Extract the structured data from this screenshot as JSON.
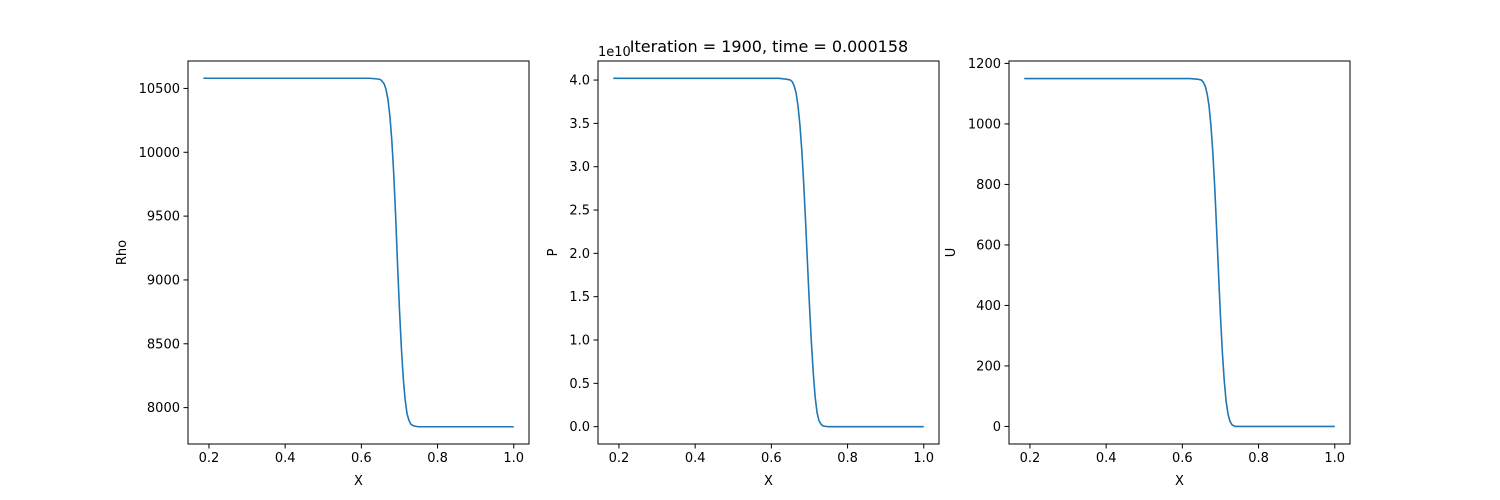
{
  "figure": {
    "title": "Iteration = 1900, time = 0.000158"
  },
  "colors": {
    "line": "#1f77b4",
    "axes": "#000000",
    "background": "#ffffff"
  },
  "chart_data": [
    {
      "type": "line",
      "xlabel": "X",
      "ylabel": "Rho",
      "xlim": [
        0.145,
        1.04
      ],
      "ylim": [
        7715,
        10715
      ],
      "x_ticks": [
        0.2,
        0.4,
        0.6,
        0.8,
        1.0
      ],
      "x_tick_labels": [
        "0.2",
        "0.4",
        "0.6",
        "0.8",
        "1.0"
      ],
      "y_ticks": [
        8000,
        8500,
        9000,
        9500,
        10000,
        10500
      ],
      "y_tick_labels": [
        "8000",
        "8500",
        "9000",
        "9500",
        "10000",
        "10500"
      ],
      "offset_text": "",
      "grid": false,
      "series": [
        {
          "x": [
            0.185,
            0.5,
            0.62,
            0.64,
            0.65,
            0.655,
            0.66,
            0.665,
            0.67,
            0.675,
            0.68,
            0.685,
            0.69,
            0.695,
            0.7,
            0.705,
            0.71,
            0.715,
            0.72,
            0.725,
            0.73,
            0.735,
            0.74,
            0.75,
            0.76,
            0.8,
            1.0
          ],
          "y": [
            10580,
            10580,
            10580,
            10575,
            10570,
            10555,
            10535,
            10490,
            10410,
            10280,
            10090,
            9830,
            9500,
            9120,
            8770,
            8470,
            8230,
            8060,
            7950,
            7900,
            7870,
            7860,
            7855,
            7850,
            7850,
            7850,
            7850
          ]
        }
      ]
    },
    {
      "type": "line",
      "xlabel": "X",
      "ylabel": "P",
      "xlim": [
        0.145,
        1.04
      ],
      "ylim": [
        -0.2,
        4.22
      ],
      "x_ticks": [
        0.2,
        0.4,
        0.6,
        0.8,
        1.0
      ],
      "x_tick_labels": [
        "0.2",
        "0.4",
        "0.6",
        "0.8",
        "1.0"
      ],
      "y_ticks": [
        0.0,
        0.5,
        1.0,
        1.5,
        2.0,
        2.5,
        3.0,
        3.5,
        4.0
      ],
      "y_tick_labels": [
        "0.0",
        "0.5",
        "1.0",
        "1.5",
        "2.0",
        "2.5",
        "3.0",
        "3.5",
        "4.0"
      ],
      "offset_text": "1e10",
      "grid": false,
      "series": [
        {
          "x": [
            0.185,
            0.5,
            0.62,
            0.64,
            0.65,
            0.655,
            0.66,
            0.665,
            0.67,
            0.675,
            0.68,
            0.685,
            0.69,
            0.695,
            0.7,
            0.705,
            0.71,
            0.715,
            0.72,
            0.725,
            0.73,
            0.735,
            0.74,
            0.75,
            0.76,
            0.8,
            1.0
          ],
          "y": [
            4.02,
            4.02,
            4.02,
            4.01,
            4.0,
            3.98,
            3.93,
            3.85,
            3.7,
            3.48,
            3.18,
            2.8,
            2.35,
            1.87,
            1.4,
            0.98,
            0.62,
            0.34,
            0.16,
            0.07,
            0.03,
            0.01,
            0.005,
            0.0,
            0.0,
            0.0,
            0.0
          ]
        }
      ]
    },
    {
      "type": "line",
      "xlabel": "X",
      "ylabel": "U",
      "xlim": [
        0.145,
        1.04
      ],
      "ylim": [
        -58,
        1208
      ],
      "x_ticks": [
        0.2,
        0.4,
        0.6,
        0.8,
        1.0
      ],
      "x_tick_labels": [
        "0.2",
        "0.4",
        "0.6",
        "0.8",
        "1.0"
      ],
      "y_ticks": [
        0,
        200,
        400,
        600,
        800,
        1000,
        1200
      ],
      "y_tick_labels": [
        "0",
        "200",
        "400",
        "600",
        "800",
        "1000",
        "1200"
      ],
      "offset_text": "",
      "grid": false,
      "series": [
        {
          "x": [
            0.185,
            0.5,
            0.62,
            0.64,
            0.65,
            0.655,
            0.66,
            0.665,
            0.67,
            0.675,
            0.68,
            0.685,
            0.69,
            0.695,
            0.7,
            0.705,
            0.71,
            0.715,
            0.72,
            0.725,
            0.73,
            0.735,
            0.74,
            0.75,
            0.76,
            0.8,
            1.0
          ],
          "y": [
            1150,
            1150,
            1150,
            1148,
            1145,
            1138,
            1125,
            1100,
            1060,
            995,
            905,
            790,
            650,
            505,
            365,
            245,
            150,
            82,
            40,
            17,
            6,
            2,
            0,
            0,
            0,
            0,
            0
          ]
        }
      ]
    }
  ]
}
